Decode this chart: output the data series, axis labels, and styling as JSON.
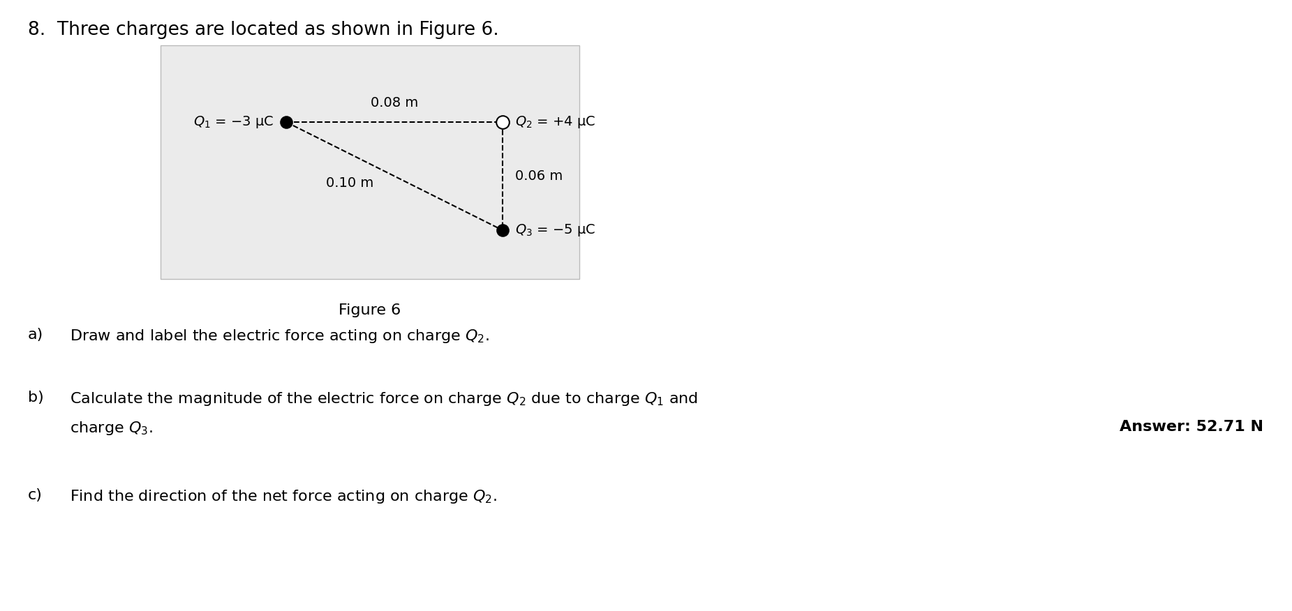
{
  "title_text": "8.  Three charges are located as shown in Figure 6.",
  "figure_caption": "Figure 6",
  "bg_color": "#ebebeb",
  "page_bg": "#ffffff",
  "q1_label": "$Q_1$ = −3 μC",
  "q2_label": "$Q_2$ = +4 μC",
  "q3_label": "$Q_3$ = −5 μC",
  "dist_12_label": "0.08 m",
  "dist_13_label": "0.10 m",
  "dist_23_label": "0.06 m",
  "dot_color_filled": "#000000",
  "dot_color_open": "#ffffff",
  "dot_edge_color": "#000000",
  "line_color": "#000000",
  "answer_text": "Answer: 52.71 N",
  "font_size_title": 19,
  "font_size_labels": 14,
  "font_size_parts": 16,
  "font_size_answer": 16,
  "font_size_caption": 16
}
